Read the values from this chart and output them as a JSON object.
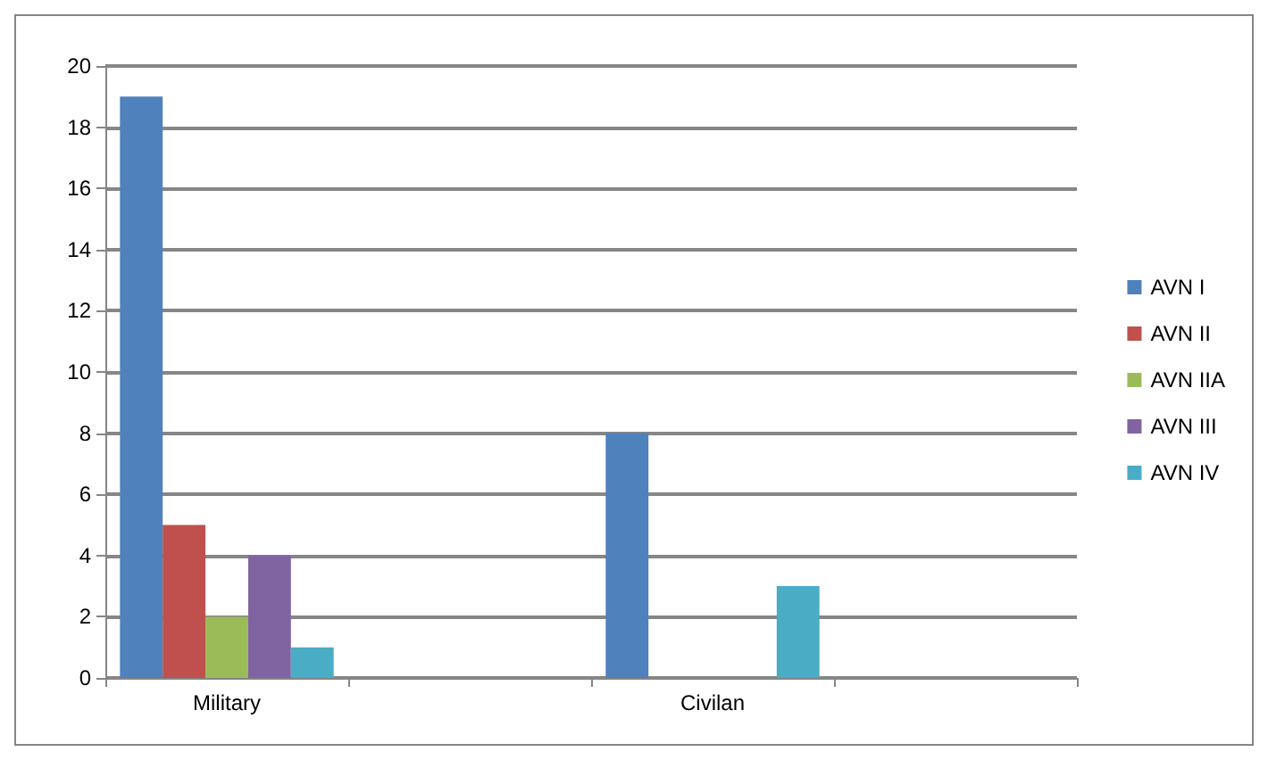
{
  "chart_data": {
    "type": "bar",
    "categories": [
      "Military",
      null,
      "Civilan",
      null
    ],
    "series": [
      {
        "name": "AVN I",
        "color": "#4f81bd",
        "values": [
          19,
          null,
          8,
          null
        ]
      },
      {
        "name": "AVN II",
        "color": "#c0504d",
        "values": [
          5,
          null,
          0,
          null
        ]
      },
      {
        "name": "AVN IIA",
        "color": "#9bbb59",
        "values": [
          2,
          null,
          0,
          null
        ]
      },
      {
        "name": "AVN III",
        "color": "#8064a2",
        "values": [
          4,
          null,
          0,
          null
        ]
      },
      {
        "name": "AVN IV",
        "color": "#4bacc6",
        "values": [
          1,
          null,
          3,
          null
        ]
      }
    ],
    "ylim": [
      0,
      20
    ],
    "yticks": [
      0,
      2,
      4,
      6,
      8,
      10,
      12,
      14,
      16,
      18,
      20
    ],
    "grid": "y",
    "legend": "right"
  }
}
